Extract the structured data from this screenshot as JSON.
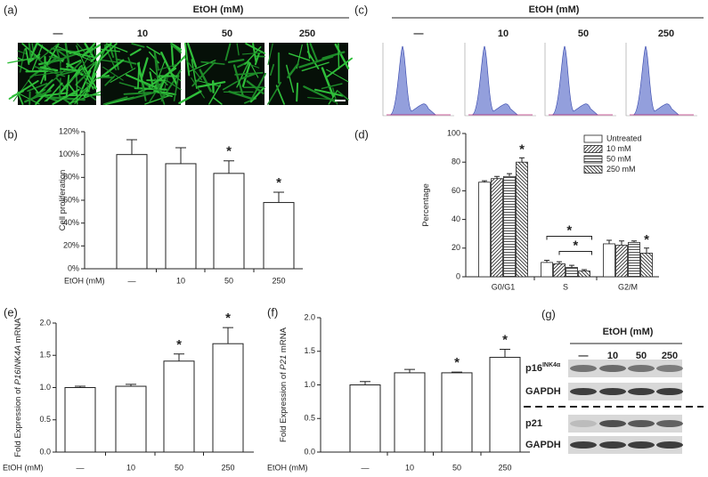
{
  "panels": {
    "a": {
      "label": "(a)",
      "header": "EtOH (mM)",
      "columns": [
        "—",
        "10",
        "50",
        "250"
      ]
    },
    "c": {
      "label": "(c)",
      "header": "EtOH (mM)",
      "columns": [
        "—",
        "10",
        "50",
        "250"
      ]
    },
    "g": {
      "label": "(g)",
      "header": "EtOH (mM)",
      "columns": [
        "—",
        "10",
        "50",
        "250"
      ],
      "rows": [
        {
          "name": "p16",
          "sup": "INK4α"
        },
        {
          "name": "GAPDH"
        },
        {
          "name": "p21"
        },
        {
          "name": "GAPDH"
        }
      ]
    }
  },
  "chart_data": [
    {
      "type": "bar",
      "panel_label": "(b)",
      "ylabel": [
        {
          "text": "Cell proliferation"
        }
      ],
      "xlabel": "EtOH (mM)",
      "categories": [
        "—",
        "10",
        "50",
        "250"
      ],
      "values": [
        100,
        92,
        83.5,
        58
      ],
      "errors": [
        13,
        14,
        11,
        9
      ],
      "color": "#ffffff",
      "ylim": [
        0,
        120
      ],
      "yticks": [
        {
          "value": 0,
          "label": "0%"
        },
        {
          "value": 20,
          "label": "20%"
        },
        {
          "value": 40,
          "label": "40%"
        },
        {
          "value": 60,
          "label": "60%"
        },
        {
          "value": 80,
          "label": "80%"
        },
        {
          "value": 100,
          "label": "100%"
        },
        {
          "value": 120,
          "label": "120%"
        }
      ],
      "annotations": [
        {
          "category": "50",
          "text": "*"
        },
        {
          "category": "250",
          "text": "*"
        }
      ]
    },
    {
      "type": "grouped_bar",
      "panel_label": "(d)",
      "ylabel": [
        {
          "text": "Percentage"
        }
      ],
      "categories": [
        "G0/G1",
        "S",
        "G2/M"
      ],
      "series": [
        {
          "name": "Untreated",
          "color": "#ffffff",
          "pattern": "none",
          "values": [
            66,
            10,
            23
          ],
          "errors": [
            1,
            1.5,
            2.5
          ]
        },
        {
          "name": "10 mM",
          "color": "#ffffff",
          "pattern": "diagonal",
          "values": [
            68.5,
            9,
            22
          ],
          "errors": [
            1.5,
            1.5,
            3
          ]
        },
        {
          "name": "50 mM",
          "color": "#ffffff",
          "pattern": "horizontal",
          "values": [
            70,
            6.5,
            24
          ],
          "errors": [
            2,
            1.5,
            1
          ]
        },
        {
          "name": "250 mM",
          "color": "#ffffff",
          "pattern": "back-diagonal",
          "values": [
            80,
            4,
            16.5
          ],
          "errors": [
            3,
            1,
            3.5
          ]
        }
      ],
      "ylim": [
        0,
        100
      ],
      "yticks": [
        0,
        20,
        40,
        60,
        80,
        100
      ],
      "legend": "upper right",
      "annotations": [
        {
          "category": "G0/G1",
          "series": "250 mM",
          "text": "*"
        },
        {
          "category": "G2/M",
          "series": "250 mM",
          "text": "*"
        },
        {
          "category": "S",
          "from": "Untreated",
          "to": "250 mM",
          "text": "*"
        },
        {
          "category": "S",
          "from": "10 mM",
          "to": "250 mM",
          "text": "*"
        }
      ]
    },
    {
      "type": "bar",
      "panel_label": "(e)",
      "ylabel": [
        {
          "text": "Fold Expression of "
        },
        {
          "text": "P16INK4A",
          "italic": true
        },
        {
          "text": " mRNA"
        }
      ],
      "xlabel": "EtOH (mM)",
      "categories": [
        "—",
        "10",
        "50",
        "250"
      ],
      "values": [
        1.0,
        1.02,
        1.41,
        1.68
      ],
      "errors": [
        0.02,
        0.03,
        0.11,
        0.25
      ],
      "color": "#ffffff",
      "ylim": [
        0,
        2
      ],
      "yticks": [
        {
          "value": 0,
          "label": "0.0"
        },
        0.5,
        {
          "value": 1,
          "label": "1.0"
        },
        1.5,
        {
          "value": 2,
          "label": "2.0"
        }
      ],
      "annotations": [
        {
          "category": "50",
          "text": "*"
        },
        {
          "category": "250",
          "text": "*"
        }
      ]
    },
    {
      "type": "bar",
      "panel_label": "(f)",
      "ylabel": [
        {
          "text": "Fold Expression of "
        },
        {
          "text": "P21",
          "italic": true
        },
        {
          "text": " mRNA"
        }
      ],
      "xlabel": "EtOH (mM)",
      "categories": [
        "—",
        "10",
        "50",
        "250"
      ],
      "values": [
        1.0,
        1.18,
        1.18,
        1.41
      ],
      "errors": [
        0.05,
        0.05,
        0.01,
        0.12
      ],
      "color": "#ffffff",
      "ylim": [
        0,
        2
      ],
      "yticks": [
        {
          "value": 0,
          "label": "0.0"
        },
        0.5,
        {
          "value": 1,
          "label": "1.0"
        },
        1.5,
        {
          "value": 2,
          "label": "2.0"
        }
      ],
      "annotations": [
        {
          "category": "50",
          "text": "*"
        },
        {
          "category": "250",
          "text": "*"
        }
      ]
    }
  ]
}
